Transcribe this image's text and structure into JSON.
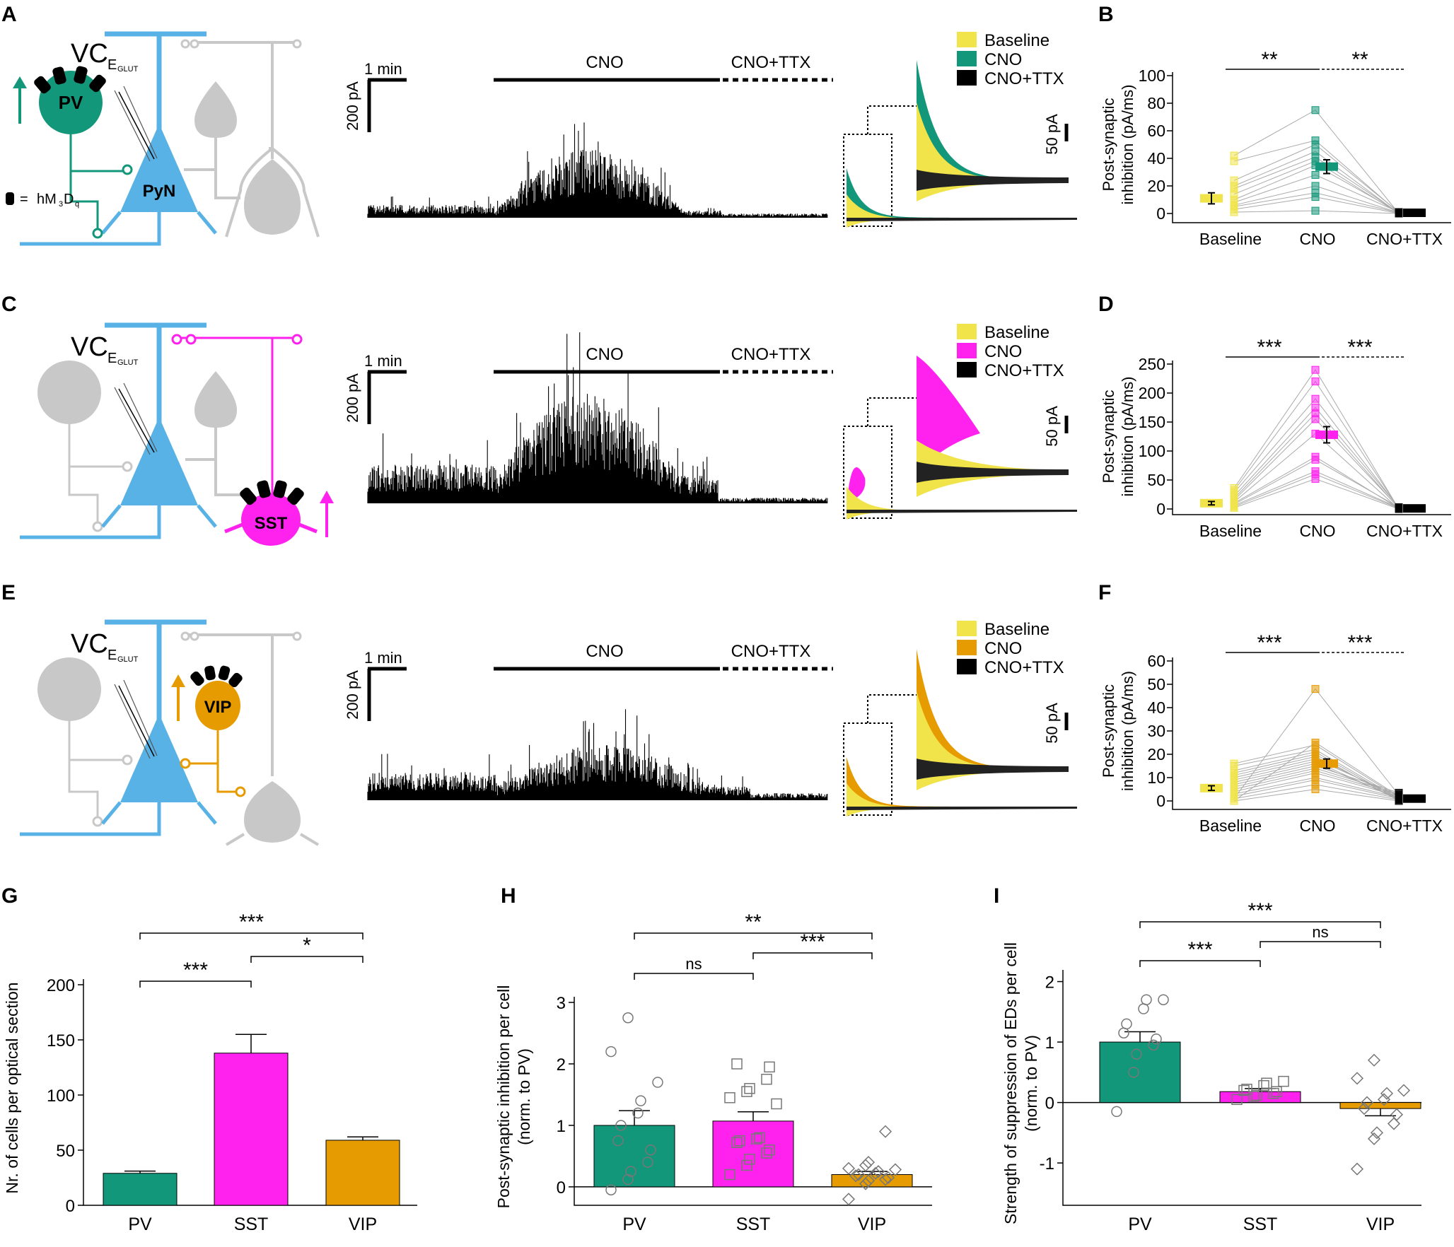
{
  "colors": {
    "baseline": "#f0e44a",
    "pv": "#13977a",
    "sst": "#ff22ee",
    "vip": "#e69b00",
    "cell_blue": "#58b2e6",
    "gray": "#c8c8c8",
    "black": "#000000"
  },
  "panel_labels": [
    "A",
    "B",
    "C",
    "D",
    "E",
    "F",
    "G",
    "H",
    "I"
  ],
  "schematics": [
    {
      "vc_main": "VC",
      "vc_sub": "E",
      "vc_subsub": "GLUT",
      "interneuron": "PV",
      "pyramidal": "PyN",
      "legend_prefix": "=",
      "legend_text": "hM",
      "legend_sub1": "3",
      "legend_mid": "D",
      "legend_sub2": "q"
    },
    {
      "vc_main": "VC",
      "vc_sub": "E",
      "vc_subsub": "GLUT",
      "interneuron": "SST"
    },
    {
      "vc_main": "VC",
      "vc_sub": "E",
      "vc_subsub": "GLUT",
      "interneuron": "VIP"
    }
  ],
  "traces": [
    {
      "time_scale": "1 min",
      "amp_scale": "200 pA",
      "cno": "CNO",
      "cno_ttx": "CNO+TTX",
      "inset_scale": "50 pA",
      "legend": [
        "Baseline",
        "CNO",
        "CNO+TTX"
      ]
    },
    {
      "time_scale": "1 min",
      "amp_scale": "200 pA",
      "cno": "CNO",
      "cno_ttx": "CNO+TTX",
      "inset_scale": "50 pA",
      "legend": [
        "Baseline",
        "CNO",
        "CNO+TTX"
      ]
    },
    {
      "time_scale": "1 min",
      "amp_scale": "200 pA",
      "cno": "CNO",
      "cno_ttx": "CNO+TTX",
      "inset_scale": "50 pA",
      "legend": [
        "Baseline",
        "CNO",
        "CNO+TTX"
      ]
    }
  ],
  "chart_data": [
    {
      "panel": "B",
      "type": "scatter",
      "ylabel_line1": "Post-synaptic",
      "ylabel_line2": "inhibition (pA/ms)",
      "categories": [
        "Baseline",
        "CNO",
        "CNO+TTX"
      ],
      "ylim": [
        0,
        100
      ],
      "yticks": [
        "0",
        "20",
        "40",
        "60",
        "80",
        "100"
      ],
      "means": [
        11,
        34,
        0.5
      ],
      "sem": [
        4,
        5,
        0.3
      ],
      "sig": [
        "**",
        "**"
      ],
      "points": [
        [
          1,
          3,
          5,
          6,
          8,
          10,
          14,
          18,
          20,
          24,
          38,
          42
        ],
        [
          2,
          12,
          15,
          20,
          28,
          35,
          38,
          41,
          45,
          50,
          53,
          75
        ],
        [
          0,
          0,
          0.5,
          0.5,
          1,
          1,
          0,
          0.5,
          0,
          1,
          0.5,
          0
        ]
      ]
    },
    {
      "panel": "D",
      "type": "scatter",
      "ylabel_line1": "Post-synaptic",
      "ylabel_line2": "inhibition (pA/ms)",
      "categories": [
        "Baseline",
        "CNO",
        "CNO+TTX"
      ],
      "ylim": [
        0,
        250
      ],
      "yticks": [
        "0",
        "50",
        "100",
        "150",
        "200",
        "250"
      ],
      "means": [
        10,
        128,
        1
      ],
      "sem": [
        3,
        14,
        0.5
      ],
      "sig": [
        "***",
        "***"
      ],
      "points": [
        [
          2,
          4,
          6,
          8,
          10,
          12,
          15,
          18,
          22,
          28,
          32,
          36
        ],
        [
          52,
          60,
          65,
          85,
          90,
          130,
          155,
          165,
          175,
          190,
          220,
          240
        ],
        [
          0,
          1,
          2,
          3,
          1,
          0,
          2,
          1,
          3,
          2,
          1,
          0
        ]
      ]
    },
    {
      "panel": "F",
      "type": "scatter",
      "ylabel_line1": "Post-synaptic",
      "ylabel_line2": "inhibition (pA/ms)",
      "categories": [
        "Baseline",
        "CNO",
        "CNO+TTX"
      ],
      "ylim": [
        0,
        60
      ],
      "yticks": [
        "0",
        "10",
        "20",
        "30",
        "40",
        "50",
        "60"
      ],
      "means": [
        5.5,
        16,
        1
      ],
      "sem": [
        1,
        2,
        0.4
      ],
      "sig": [
        "***",
        "***"
      ],
      "points": [
        [
          0,
          1,
          2,
          3,
          4,
          5,
          6,
          7,
          8,
          9,
          10,
          11,
          12,
          13,
          15,
          16
        ],
        [
          5,
          7,
          9,
          10,
          12,
          13,
          14,
          15,
          16,
          17,
          18,
          19,
          20,
          21,
          22,
          24,
          25,
          48
        ],
        [
          0,
          0.5,
          1,
          1.5,
          2,
          2.5,
          3,
          3.5,
          1,
          0.5,
          2,
          1
        ]
      ]
    },
    {
      "panel": "G",
      "type": "bar",
      "ylabel": "Nr. of cells per optical section",
      "categories": [
        "PV",
        "SST",
        "VIP"
      ],
      "values": [
        29,
        138,
        59
      ],
      "sem": [
        2,
        17,
        3
      ],
      "ylim": [
        0,
        200
      ],
      "yticks": [
        "0",
        "50",
        "100",
        "150",
        "200"
      ],
      "sig": [
        {
          "a": 0,
          "b": 1,
          "label": "***"
        },
        {
          "a": 1,
          "b": 2,
          "label": "*"
        },
        {
          "a": 0,
          "b": 2,
          "label": "***"
        }
      ]
    },
    {
      "panel": "H",
      "type": "bar",
      "ylabel_line1": "Post-synaptic inhibition per cell",
      "ylabel_line2": "(norm. to PV)",
      "categories": [
        "PV",
        "SST",
        "VIP"
      ],
      "values": [
        1.0,
        1.07,
        0.2
      ],
      "sem": [
        0.24,
        0.15,
        0.05
      ],
      "ylim": [
        -0.3,
        3
      ],
      "yticks": [
        "0",
        "1",
        "2",
        "3"
      ],
      "markers": [
        "circle",
        "square",
        "diamond"
      ],
      "points": [
        [
          -0.05,
          0.12,
          0.25,
          0.4,
          0.6,
          0.75,
          1.0,
          1.2,
          1.4,
          1.7,
          2.2,
          2.75
        ],
        [
          0.2,
          0.35,
          0.45,
          0.55,
          0.6,
          0.72,
          0.75,
          0.78,
          0.8,
          1.35,
          1.45,
          1.55,
          1.6,
          1.75,
          1.95,
          2.0
        ],
        [
          -0.2,
          0.05,
          0.1,
          0.12,
          0.15,
          0.18,
          0.2,
          0.22,
          0.25,
          0.28,
          0.3,
          0.35,
          0.4,
          0.9
        ]
      ],
      "sig": [
        {
          "a": 0,
          "b": 1,
          "label": "ns"
        },
        {
          "a": 1,
          "b": 2,
          "label": "***"
        },
        {
          "a": 0,
          "b": 2,
          "label": "**"
        }
      ]
    },
    {
      "panel": "I",
      "type": "bar",
      "ylabel_line1": "Strength of suppression of EDs per cell",
      "ylabel_line2": "(norm. to PV)",
      "categories": [
        "PV",
        "SST",
        "VIP"
      ],
      "values": [
        1.0,
        0.18,
        -0.1
      ],
      "sem": [
        0.17,
        0.05,
        0.12
      ],
      "ylim": [
        -1.7,
        2.1
      ],
      "yticks": [
        "-1",
        "0",
        "1",
        "2"
      ],
      "markers": [
        "circle",
        "square",
        "diamond"
      ],
      "points": [
        [
          -0.15,
          0.5,
          0.8,
          0.95,
          1.05,
          1.15,
          1.3,
          1.55,
          1.7,
          1.7
        ],
        [
          0.05,
          0.1,
          0.12,
          0.15,
          0.18,
          0.2,
          0.22,
          0.28,
          0.32,
          0.35
        ],
        [
          -1.1,
          -0.6,
          -0.5,
          -0.35,
          -0.2,
          -0.1,
          0.0,
          0.05,
          0.15,
          0.2,
          0.4,
          0.7
        ]
      ],
      "sig": [
        {
          "a": 0,
          "b": 1,
          "label": "***"
        },
        {
          "a": 1,
          "b": 2,
          "label": "ns"
        },
        {
          "a": 0,
          "b": 2,
          "label": "***"
        }
      ]
    }
  ]
}
